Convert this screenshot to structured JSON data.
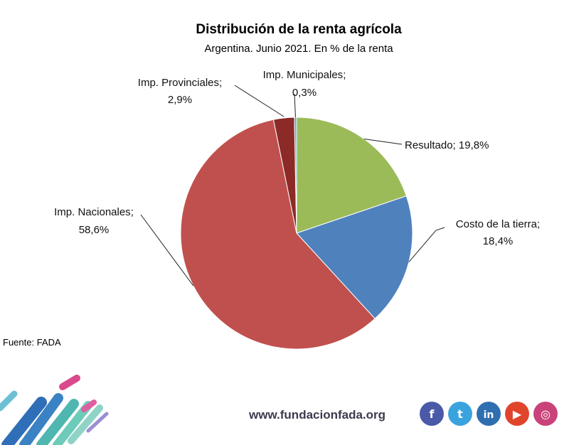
{
  "chart_data": {
    "type": "pie",
    "title": "Distribución de la renta agrícola",
    "subtitle": "Argentina. Junio 2021. En % de la renta",
    "slices": [
      {
        "label": "Resultado",
        "value": 19.8,
        "value_text": "19,8%",
        "color": "#9bbb59"
      },
      {
        "label": "Costo de la tierra",
        "value": 18.4,
        "value_text": "18,4%",
        "color": "#4f81bd"
      },
      {
        "label": "Imp. Nacionales",
        "value": 58.6,
        "value_text": "58,6%",
        "color": "#c0504d"
      },
      {
        "label": "Imp. Provinciales",
        "value": 2.9,
        "value_text": "2,9%",
        "color": "#8b2a27"
      },
      {
        "label": "Imp. Municipales",
        "value": 0.3,
        "value_text": "0,3%",
        "color": "#4bacc6"
      }
    ],
    "source": "Fuente: FADA"
  },
  "footer": {
    "website": "www.fundacionfada.org",
    "social_icons": [
      {
        "name": "facebook-icon",
        "glyph": "f",
        "color": "#4a5aa8"
      },
      {
        "name": "twitter-icon",
        "glyph": "t",
        "color": "#3aa3dd"
      },
      {
        "name": "linkedin-icon",
        "glyph": "in",
        "color": "#2f6fb0"
      },
      {
        "name": "youtube-icon",
        "glyph": "▶",
        "color": "#e0452c"
      },
      {
        "name": "instagram-icon",
        "glyph": "◎",
        "color": "#c9437a"
      }
    ]
  }
}
